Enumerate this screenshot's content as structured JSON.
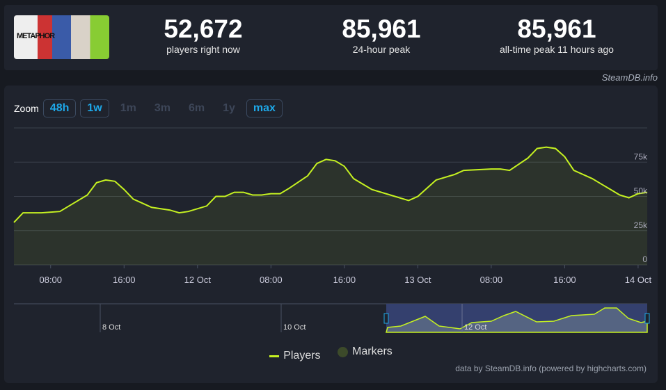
{
  "header": {
    "thumbnail_alt": "METAPHOR",
    "stats": [
      {
        "value": "52,672",
        "label": "players right now"
      },
      {
        "value": "85,961",
        "label": "24-hour peak"
      },
      {
        "value": "85,961",
        "label": "all-time peak 11 hours ago"
      }
    ],
    "credit": "SteamDB.info"
  },
  "zoom": {
    "label": "Zoom",
    "buttons": [
      {
        "label": "48h",
        "active": true
      },
      {
        "label": "1w",
        "active": true
      },
      {
        "label": "1m",
        "active": false
      },
      {
        "label": "3m",
        "active": false
      },
      {
        "label": "6m",
        "active": false
      },
      {
        "label": "1y",
        "active": false
      },
      {
        "label": "max",
        "active": true
      }
    ]
  },
  "chart_data": {
    "type": "area",
    "line_color": "#c6f221",
    "ylim": [
      0,
      100000
    ],
    "y_ticks": [
      "0",
      "25k",
      "50k",
      "75k"
    ],
    "x_ticks": [
      "08:00",
      "16:00",
      "12 Oct",
      "08:00",
      "16:00",
      "13 Oct",
      "08:00",
      "16:00",
      "14 Oct"
    ],
    "series": [
      {
        "name": "Players",
        "x": [
          "11 04:00",
          "11 05:00",
          "11 07:00",
          "11 09:00",
          "11 10:00",
          "11 12:00",
          "11 13:00",
          "11 14:00",
          "11 15:00",
          "11 16:00",
          "11 17:00",
          "11 18:00",
          "11 19:00",
          "11 21:00",
          "11 22:00",
          "11 23:00",
          "12 01:00",
          "12 02:00",
          "12 03:00",
          "12 04:00",
          "12 05:00",
          "12 06:00",
          "12 07:00",
          "12 08:00",
          "12 09:00",
          "12 10:00",
          "12 12:00",
          "12 13:00",
          "12 14:00",
          "12 15:00",
          "12 16:00",
          "12 17:00",
          "12 19:00",
          "12 21:00",
          "12 23:00",
          "13 00:00",
          "13 02:00",
          "13 04:00",
          "13 05:00",
          "13 08:00",
          "13 09:00",
          "13 10:00",
          "13 12:00",
          "13 13:00",
          "13 14:00",
          "13 15:00",
          "13 16:00",
          "13 17:00",
          "13 19:00",
          "13 20:00",
          "13 21:00",
          "13 22:00",
          "13 23:00",
          "14 00:00",
          "14 01:00"
        ],
        "values": [
          31000,
          38000,
          38000,
          39000,
          43000,
          51000,
          60000,
          62000,
          61000,
          55000,
          48000,
          45000,
          42000,
          40000,
          38000,
          39000,
          43000,
          50000,
          50000,
          53000,
          53000,
          51000,
          51000,
          52000,
          52000,
          56000,
          65000,
          74000,
          77000,
          76000,
          72000,
          63000,
          55000,
          51000,
          47000,
          50000,
          62000,
          66000,
          69000,
          70000,
          70000,
          69000,
          78000,
          85000,
          86000,
          85000,
          79000,
          69000,
          63000,
          59000,
          55000,
          51000,
          49000,
          52000,
          53000
        ]
      }
    ],
    "navigator_labels": [
      "8 Oct",
      "10 Oct",
      "12 Oct"
    ],
    "legend": [
      {
        "name": "Players",
        "color": "#c6f221"
      },
      {
        "name": "Markers",
        "color": "#3c4a2a"
      }
    ],
    "legend_placement": "bottom"
  },
  "footer": "data by SteamDB.info (powered by highcharts.com)"
}
